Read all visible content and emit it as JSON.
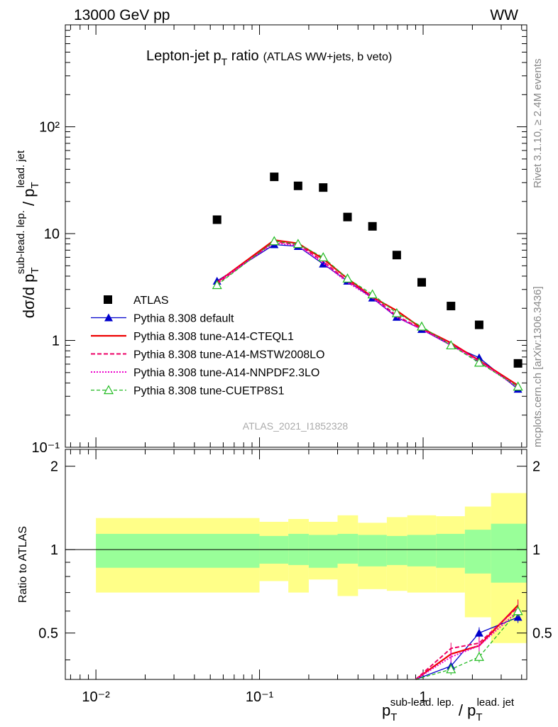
{
  "header": {
    "left": "13000 GeV pp",
    "right": "WW"
  },
  "side_labels": {
    "rivet": "Rivet 3.1.10, ≥ 2.4M events",
    "mcplots": "mcplots.cern.ch [arXiv:1306.3436]"
  },
  "title": {
    "main": "Lepton-jet p",
    "main_sub": "T",
    "main_rest": " ratio",
    "extra": "(ATLAS WW+jets, b veto)"
  },
  "watermark": "ATLAS_2021_I1852328",
  "colors": {
    "atlas": "#000000",
    "default": "#0000cc",
    "a14cteq": "#ee0000",
    "mstw": "#ee0066",
    "nnpdf": "#ee00cc",
    "cuetp8s1": "#22bb22",
    "band_inner": "#99ff99",
    "band_outer": "#ffff88"
  },
  "chart_data": [
    {
      "type": "scatter",
      "title": "Lepton-jet pT ratio",
      "ylabel_parts": {
        "base": "dσ/d p",
        "sub": "T",
        "sup": "sub-lead. lep.",
        "slash": " / p",
        "sub2": "T",
        "sup2": "lead. jet"
      },
      "y_log": true,
      "x_log": true,
      "xlim": [
        0.0065,
        4.3
      ],
      "ylim": [
        0.1,
        900
      ],
      "y_ticks": [
        "10⁻¹",
        "1",
        "10",
        "10²"
      ],
      "legend_position": "lower-left",
      "x": [
        0.055,
        0.123,
        0.172,
        0.245,
        0.345,
        0.49,
        0.69,
        0.98,
        1.48,
        2.2,
        3.8
      ],
      "series": [
        {
          "name": "ATLAS",
          "style": "marker-square",
          "values": [
            13.5,
            34,
            28,
            27,
            14.3,
            11.7,
            6.3,
            3.5,
            2.1,
            1.4,
            0.61
          ]
        },
        {
          "name": "Pythia 8.308 default",
          "style": "line-triangle",
          "values": [
            3.6,
            7.9,
            7.6,
            5.2,
            3.6,
            2.5,
            1.65,
            1.27,
            0.9,
            0.69,
            0.35
          ]
        },
        {
          "name": "Pythia 8.308 tune-A14-CTEQL1",
          "style": "line-solid",
          "values": [
            3.5,
            8.7,
            8.1,
            5.8,
            3.8,
            2.55,
            1.9,
            1.3,
            0.95,
            0.65,
            0.38
          ]
        },
        {
          "name": "Pythia 8.308 tune-A14-MSTW2008LO",
          "style": "line-dashed",
          "values": [
            3.4,
            8.4,
            7.9,
            5.5,
            3.6,
            2.6,
            1.7,
            1.28,
            0.93,
            0.64,
            0.37
          ]
        },
        {
          "name": "Pythia 8.308 tune-A14-NNPDF2.3LO",
          "style": "line-dotted",
          "values": [
            3.5,
            8.2,
            7.7,
            5.3,
            3.5,
            2.5,
            1.65,
            1.27,
            0.9,
            0.64,
            0.36
          ]
        },
        {
          "name": "Pythia 8.308 tune-CUETP8S1",
          "style": "line-dashed-open-triangle",
          "values": [
            3.3,
            8.5,
            8.0,
            6.0,
            3.8,
            2.7,
            1.8,
            1.35,
            0.9,
            0.62,
            0.37
          ]
        }
      ]
    },
    {
      "type": "line",
      "ylabel": "Ratio to ATLAS",
      "xlabel_parts": {
        "base": "p",
        "sub": "T",
        "sup": "sub-lead. lep.",
        "slash": " / p",
        "sub2": "T",
        "sup2": "lead. jet"
      },
      "x_log": true,
      "xlim": [
        0.0065,
        4.3
      ],
      "ylim": [
        0.34,
        2.3
      ],
      "y_ticks": [
        "0.5",
        "1",
        "2"
      ],
      "x_ticks": [
        "10⁻²",
        "10⁻¹",
        "1"
      ],
      "reference": 1,
      "bands": {
        "bin_edges": [
          0.01,
          0.1,
          0.15,
          0.2,
          0.3,
          0.4,
          0.6,
          0.8,
          1.2,
          1.8,
          2.6,
          5.0
        ],
        "inner_low": [
          0.86,
          0.89,
          0.88,
          0.86,
          0.89,
          0.87,
          0.88,
          0.87,
          0.86,
          0.82,
          0.76
        ],
        "inner_high": [
          1.14,
          1.12,
          1.14,
          1.13,
          1.14,
          1.13,
          1.12,
          1.13,
          1.14,
          1.18,
          1.24
        ],
        "outer_low": [
          0.7,
          0.77,
          0.7,
          0.78,
          0.68,
          0.72,
          0.71,
          0.7,
          0.7,
          0.57,
          0.46
        ],
        "outer_high": [
          1.3,
          1.26,
          1.29,
          1.26,
          1.33,
          1.25,
          1.31,
          1.33,
          1.32,
          1.43,
          1.6
        ]
      },
      "x": [
        1.48,
        2.2,
        3.8
      ],
      "series": [
        {
          "name": "Pythia 8.308 default",
          "values": [
            0.38,
            0.5,
            0.57
          ]
        },
        {
          "name": "Pythia 8.308 tune-A14-CTEQL1",
          "values": [
            0.42,
            0.45,
            0.63
          ]
        },
        {
          "name": "Pythia 8.308 tune-A14-MSTW2008LO",
          "values": [
            0.44,
            0.46,
            0.62
          ]
        },
        {
          "name": "Pythia 8.308 tune-A14-NNPDF2.3LO",
          "values": [
            0.41,
            0.45,
            0.6
          ]
        },
        {
          "name": "Pythia 8.308 tune-CUETP8S1",
          "values": [
            0.37,
            0.41,
            0.6
          ]
        }
      ]
    }
  ]
}
